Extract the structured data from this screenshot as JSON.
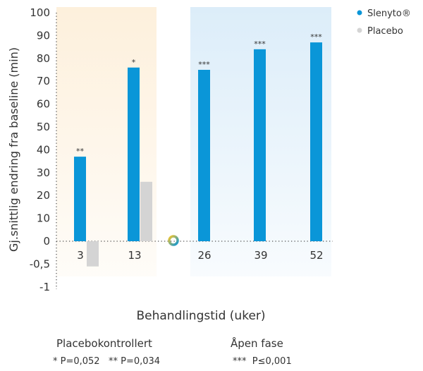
{
  "chart_data": {
    "type": "bar",
    "ylabel": "Gj.snittlig endring fra baseline (min)",
    "xlabel": "Behandlingstid (uker)",
    "y_ticks": [
      "100",
      "90",
      "80",
      "70",
      "60",
      "50",
      "40",
      "30",
      "20",
      "10",
      "0",
      "-0,5",
      "-1"
    ],
    "categories": [
      "3",
      "13",
      "26",
      "39",
      "52"
    ],
    "series": [
      {
        "name": "Slenyto®",
        "color": "#0a96d8",
        "values": [
          37,
          76,
          75,
          84,
          87
        ]
      },
      {
        "name": "Placebo",
        "color": "#d4d4d4",
        "values": [
          -0.55,
          26,
          null,
          null,
          null
        ]
      }
    ],
    "significance": [
      "**",
      "*",
      "***",
      "***",
      "***"
    ],
    "phases": [
      {
        "label": "Placebokontrollert",
        "color": "#fdf0dc",
        "categories": [
          "3",
          "13"
        ]
      },
      {
        "label": "Åpen fase",
        "color": "#dcedf9",
        "categories": [
          "26",
          "39",
          "52"
        ]
      }
    ],
    "legend_position": "top-right",
    "grid": false
  },
  "footnotes": {
    "placebo_controlled": "* P=0,052   ** P=0,034",
    "open_phase": "***  P≤0,001"
  }
}
